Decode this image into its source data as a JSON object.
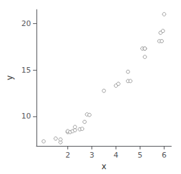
{
  "chart_data": {
    "type": "scatter",
    "x": [
      1.0,
      1.5,
      1.7,
      1.7,
      2.0,
      2.0,
      2.1,
      2.2,
      2.3,
      2.3,
      2.5,
      2.6,
      2.7,
      2.8,
      2.9,
      3.5,
      4.0,
      4.1,
      4.5,
      4.5,
      4.6,
      5.1,
      5.2,
      5.2,
      5.2,
      5.8,
      5.85,
      5.9,
      5.95,
      6.0
    ],
    "values": [
      7.3,
      7.6,
      7.2,
      7.5,
      8.3,
      8.4,
      8.3,
      8.4,
      8.5,
      8.85,
      8.6,
      8.65,
      9.4,
      10.2,
      10.15,
      12.75,
      13.3,
      13.5,
      13.8,
      14.8,
      13.8,
      17.3,
      17.3,
      17.3,
      16.4,
      18.1,
      19.0,
      18.1,
      19.2,
      21.0
    ],
    "xlabel": "x",
    "ylabel": "y",
    "xlim": [
      0.7,
      6.3
    ],
    "ylim": [
      6.8,
      21.5
    ],
    "xticks": [
      2,
      3,
      4,
      5,
      6
    ],
    "yticks": [
      10,
      15,
      20
    ],
    "color": "#888888",
    "marker": "circle",
    "grid": false
  }
}
